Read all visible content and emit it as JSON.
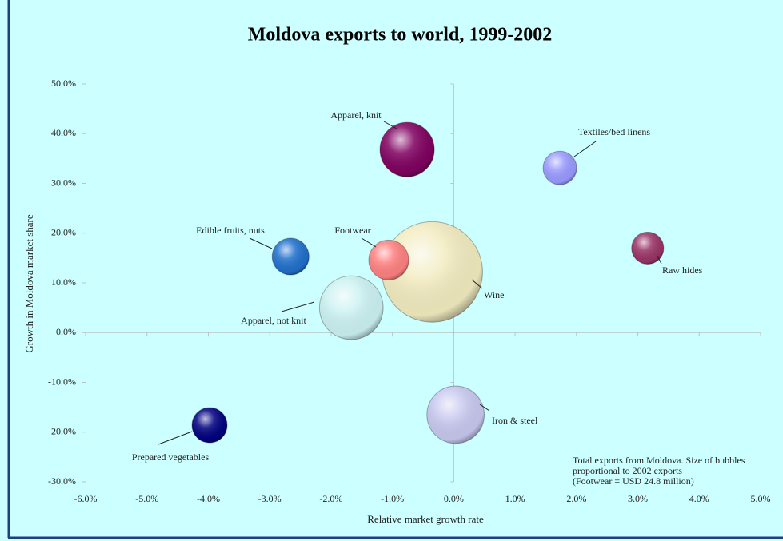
{
  "chart_data": {
    "type": "bubble",
    "title": "Moldova exports to world, 1999-2002",
    "x_label": "Relative market growth rate",
    "y_label": "Growth in Moldova market share",
    "annotation": [
      "Total exports from Moldova. Size of bubbles",
      "proportional to 2002 exports",
      "(Footwear = USD 24.8 million)"
    ],
    "xlim": [
      -6,
      5
    ],
    "ylim": [
      -30,
      50
    ],
    "xticks": [
      {
        "value": -6,
        "label": "-6.0%"
      },
      {
        "value": -5,
        "label": "-5.0%"
      },
      {
        "value": -4,
        "label": "-4.0%"
      },
      {
        "value": -3,
        "label": "-3.0%"
      },
      {
        "value": -2,
        "label": "-2.0%"
      },
      {
        "value": -1,
        "label": "-1.0%"
      },
      {
        "value": 0,
        "label": "0.0%"
      },
      {
        "value": 1,
        "label": "1.0%"
      },
      {
        "value": 2,
        "label": "2.0%"
      },
      {
        "value": 3,
        "label": "3.0%"
      },
      {
        "value": 4,
        "label": "4.0%"
      },
      {
        "value": 5,
        "label": "5.0%"
      }
    ],
    "yticks": [
      {
        "value": 50,
        "label": "50.0%"
      },
      {
        "value": 40,
        "label": "40.0%"
      },
      {
        "value": 30,
        "label": "30.0%"
      },
      {
        "value": 20,
        "label": "20.0%"
      },
      {
        "value": 10,
        "label": "10.0%"
      },
      {
        "value": 0,
        "label": "0.0%"
      },
      {
        "value": -10,
        "label": "-10.0%"
      },
      {
        "value": -20,
        "label": "-20.0%"
      },
      {
        "value": -30,
        "label": "-30.0%"
      }
    ],
    "points": [
      {
        "name": "Apparel, knit",
        "x": -0.76,
        "y": 36.8,
        "size": 46,
        "color": "#800060"
      },
      {
        "name": "Textiles/bed linens",
        "x": 1.73,
        "y": 33.1,
        "size": 17.5,
        "color": "#9999ff"
      },
      {
        "name": "Edible fruits, nuts",
        "x": -2.66,
        "y": 15.3,
        "size": 21,
        "color": "#1f6fcc"
      },
      {
        "name": "Wine",
        "x": -0.35,
        "y": 12.2,
        "size": 157,
        "color": "#f2ecc0"
      },
      {
        "name": "Footwear",
        "x": -1.06,
        "y": 14.6,
        "size": 24.8,
        "color": "#ff8080"
      },
      {
        "name": "Apparel, not knit",
        "x": -1.67,
        "y": 5.0,
        "size": 63,
        "color": "#ccf2f2"
      },
      {
        "name": "Raw hides",
        "x": 3.16,
        "y": 17.0,
        "size": 16,
        "color": "#993366"
      },
      {
        "name": "Prepared vegetables",
        "x": -3.98,
        "y": -18.6,
        "size": 19.2,
        "color": "#000080"
      },
      {
        "name": "Iron & steel",
        "x": 0.03,
        "y": -16.5,
        "size": 51,
        "color": "#c8c8f0"
      }
    ]
  }
}
